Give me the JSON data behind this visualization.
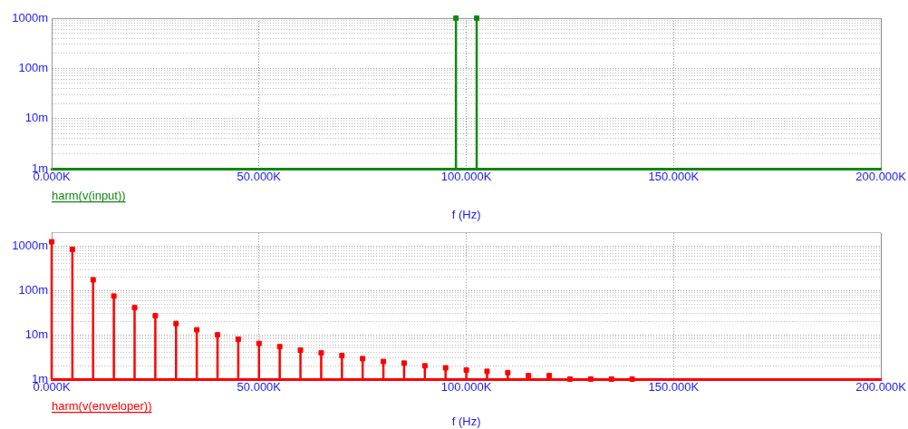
{
  "chart_data": [
    {
      "type": "lollipop",
      "xlabel": "f (Hz)",
      "x": [
        97500,
        102500
      ],
      "series": [
        {
          "name": "harm(v(input))",
          "color": "#118811",
          "values": [
            1000,
            1000
          ]
        }
      ],
      "xlim": [
        0,
        200000
      ],
      "xticks": [
        {
          "value": 0,
          "label": "0.000K"
        },
        {
          "value": 50000,
          "label": "50.000K"
        },
        {
          "value": 100000,
          "label": "100.000K"
        },
        {
          "value": 150000,
          "label": "150.000K"
        },
        {
          "value": 200000,
          "label": "200.000K"
        }
      ],
      "ylim": [
        1,
        1000
      ],
      "yticks": [
        {
          "value": 1,
          "label": "1m"
        },
        {
          "value": 2,
          "label": null
        },
        {
          "value": 3,
          "label": null
        },
        {
          "value": 4,
          "label": null
        },
        {
          "value": 5,
          "label": null
        },
        {
          "value": 6,
          "label": null
        },
        {
          "value": 7,
          "label": null
        },
        {
          "value": 8,
          "label": null
        },
        {
          "value": 9,
          "label": null
        },
        {
          "value": 10,
          "label": "10m"
        },
        {
          "value": 20,
          "label": null
        },
        {
          "value": 30,
          "label": null
        },
        {
          "value": 40,
          "label": null
        },
        {
          "value": 50,
          "label": null
        },
        {
          "value": 60,
          "label": null
        },
        {
          "value": 70,
          "label": null
        },
        {
          "value": 80,
          "label": null
        },
        {
          "value": 90,
          "label": null
        },
        {
          "value": 100,
          "label": "100m"
        },
        {
          "value": 200,
          "label": null
        },
        {
          "value": 300,
          "label": null
        },
        {
          "value": 400,
          "label": null
        },
        {
          "value": 500,
          "label": null
        },
        {
          "value": 600,
          "label": null
        },
        {
          "value": 700,
          "label": null
        },
        {
          "value": 800,
          "label": null
        },
        {
          "value": 900,
          "label": null
        },
        {
          "value": 1000,
          "label": "1000m"
        }
      ],
      "log": "y",
      "grid": true,
      "legend": "bottom left",
      "marker": "square"
    },
    {
      "type": "lollipop",
      "xlabel": "f (Hz)",
      "x": [
        0,
        5000,
        10000,
        15000,
        20000,
        25000,
        30000,
        35000,
        40000,
        45000,
        50000,
        55000,
        60000,
        65000,
        70000,
        75000,
        80000,
        85000,
        90000,
        95000,
        100000,
        105000,
        110000,
        115000,
        120000,
        125000,
        130000,
        135000,
        140000
      ],
      "series": [
        {
          "name": "harm(v(enveloper))",
          "color": "#ff0000",
          "values": [
            1260,
            850,
            175,
            75,
            41,
            27,
            18,
            13,
            10,
            8,
            6.4,
            5.4,
            4.5,
            3.9,
            3.4,
            2.9,
            2.5,
            2.3,
            2,
            1.8,
            1.6,
            1.5,
            1.4,
            1.2,
            1.2,
            1,
            1,
            1,
            1
          ]
        }
      ],
      "xlim": [
        0,
        200000
      ],
      "xticks": [
        {
          "value": 0,
          "label": "0.000K"
        },
        {
          "value": 50000,
          "label": "50.000K"
        },
        {
          "value": 100000,
          "label": "100.000K"
        },
        {
          "value": 150000,
          "label": "150.000K"
        },
        {
          "value": 200000,
          "label": "200.000K"
        }
      ],
      "ylim": [
        1,
        2000
      ],
      "yticks": [
        {
          "value": 1,
          "label": "1m"
        },
        {
          "value": 2,
          "label": null
        },
        {
          "value": 3,
          "label": null
        },
        {
          "value": 4,
          "label": null
        },
        {
          "value": 5,
          "label": null
        },
        {
          "value": 6,
          "label": null
        },
        {
          "value": 7,
          "label": null
        },
        {
          "value": 8,
          "label": null
        },
        {
          "value": 9,
          "label": null
        },
        {
          "value": 10,
          "label": "10m"
        },
        {
          "value": 20,
          "label": null
        },
        {
          "value": 30,
          "label": null
        },
        {
          "value": 40,
          "label": null
        },
        {
          "value": 50,
          "label": null
        },
        {
          "value": 60,
          "label": null
        },
        {
          "value": 70,
          "label": null
        },
        {
          "value": 80,
          "label": null
        },
        {
          "value": 90,
          "label": null
        },
        {
          "value": 100,
          "label": "100m"
        },
        {
          "value": 200,
          "label": null
        },
        {
          "value": 300,
          "label": null
        },
        {
          "value": 400,
          "label": null
        },
        {
          "value": 500,
          "label": null
        },
        {
          "value": 600,
          "label": null
        },
        {
          "value": 700,
          "label": null
        },
        {
          "value": 800,
          "label": null
        },
        {
          "value": 900,
          "label": null
        },
        {
          "value": 1000,
          "label": "1000m"
        },
        {
          "value": 2000,
          "label": null
        }
      ],
      "log": "y",
      "grid": true,
      "legend": "bottom left",
      "marker": "square"
    }
  ]
}
